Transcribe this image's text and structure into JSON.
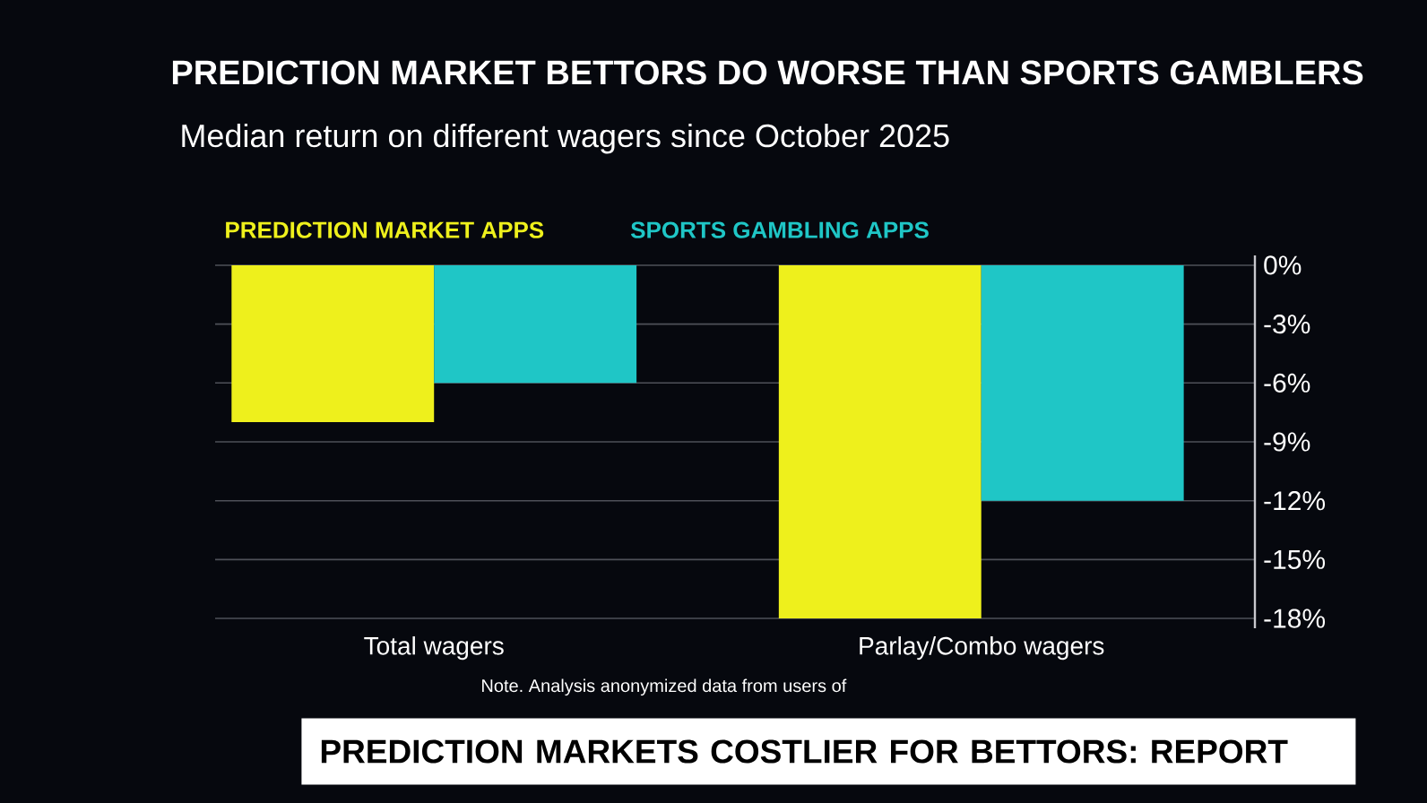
{
  "chart_data": {
    "type": "bar",
    "title": "PREDICTION MARKET BETTORS DO WORSE THAN SPORTS GAMBLERS",
    "subtitle": "Median return on different wagers since October 2025",
    "categories": [
      "Total wagers",
      "Parlay/Combo wagers"
    ],
    "series": [
      {
        "name": "PREDICTION MARKET APPS",
        "color": "#eef01c",
        "values": [
          -8,
          -18
        ]
      },
      {
        "name": "SPORTS GAMBLING APPS",
        "color": "#1fc6c6",
        "values": [
          -6,
          -12
        ]
      }
    ],
    "ylim": [
      -18.5,
      0.5
    ],
    "yticks": [
      {
        "value": 0,
        "label": "0%"
      },
      {
        "value": -3,
        "label": "-3%"
      },
      {
        "value": -6,
        "label": "-6%"
      },
      {
        "value": -9,
        "label": "-9%"
      },
      {
        "value": -12,
        "label": "-12%"
      },
      {
        "value": -15,
        "label": "-15%"
      },
      {
        "value": -18,
        "label": "-18%"
      }
    ],
    "grid": "y",
    "legend": "top left",
    "annotations": [
      "Note. Analysis anonymized data from users of",
      "PREDICTION MARKETS COSTLIER FOR BETTORS: REPORT"
    ]
  }
}
